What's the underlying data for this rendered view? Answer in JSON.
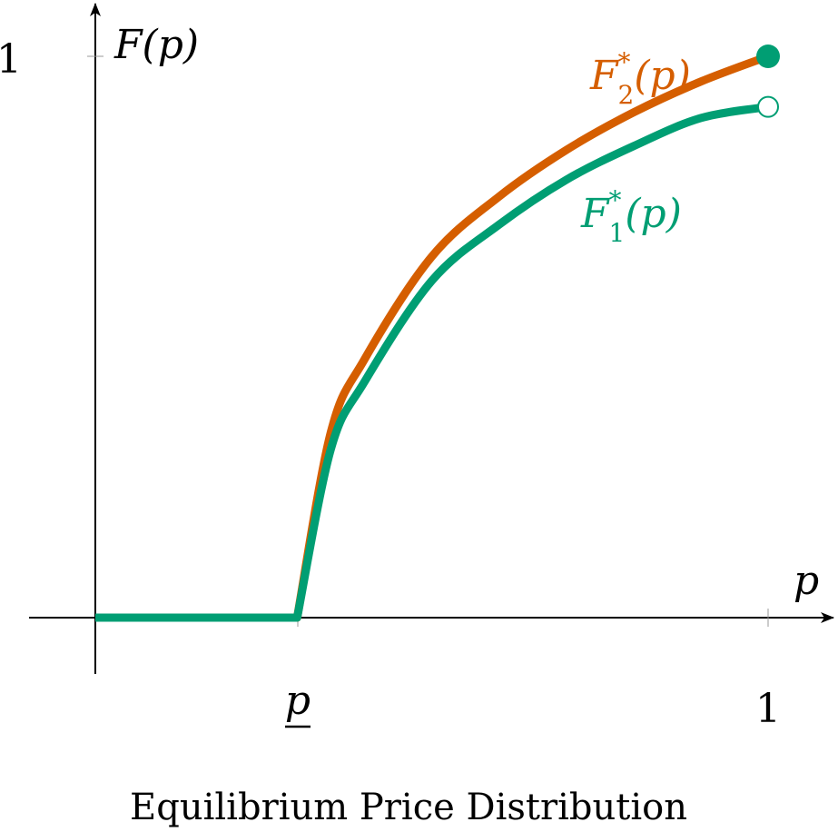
{
  "chart_data": {
    "type": "line",
    "title": "Equilibrium Price Distribution",
    "xlabel": "p",
    "ylabel": "F(p)",
    "xlim": [
      -0.1,
      1.1
    ],
    "ylim": [
      -0.1,
      1.0
    ],
    "grid": false,
    "legend": "inline",
    "x_ticks": [
      {
        "value": 0.3,
        "label": "p",
        "underline": true
      },
      {
        "value": 1,
        "label": "1"
      }
    ],
    "y_ticks": [
      {
        "value": 1,
        "label": "1"
      }
    ],
    "series": [
      {
        "name": "F*2(p)",
        "label_base": "F",
        "label_sup": "*",
        "label_sub": "2",
        "label_tail": "(p)",
        "color": "#D55E00",
        "x": [
          0.0,
          0.3,
          0.35,
          0.4,
          0.5,
          0.6,
          0.7,
          0.8,
          0.9,
          1.0
        ],
        "y": [
          0.0,
          0.0,
          0.33,
          0.46,
          0.643,
          0.75,
          0.833,
          0.9,
          0.955,
          1.0
        ],
        "endpoint": "filled"
      },
      {
        "name": "F*1(p)",
        "label_base": "F",
        "label_sup": "*",
        "label_sub": "1",
        "label_tail": "(p)",
        "color": "#009E73",
        "x": [
          0.0,
          0.3,
          0.35,
          0.4,
          0.5,
          0.6,
          0.7,
          0.8,
          0.9,
          1.0
        ],
        "y": [
          0.0,
          0.0,
          0.3,
          0.42,
          0.6,
          0.7,
          0.78,
          0.84,
          0.89,
          0.91
        ],
        "endpoint": "open"
      }
    ]
  }
}
